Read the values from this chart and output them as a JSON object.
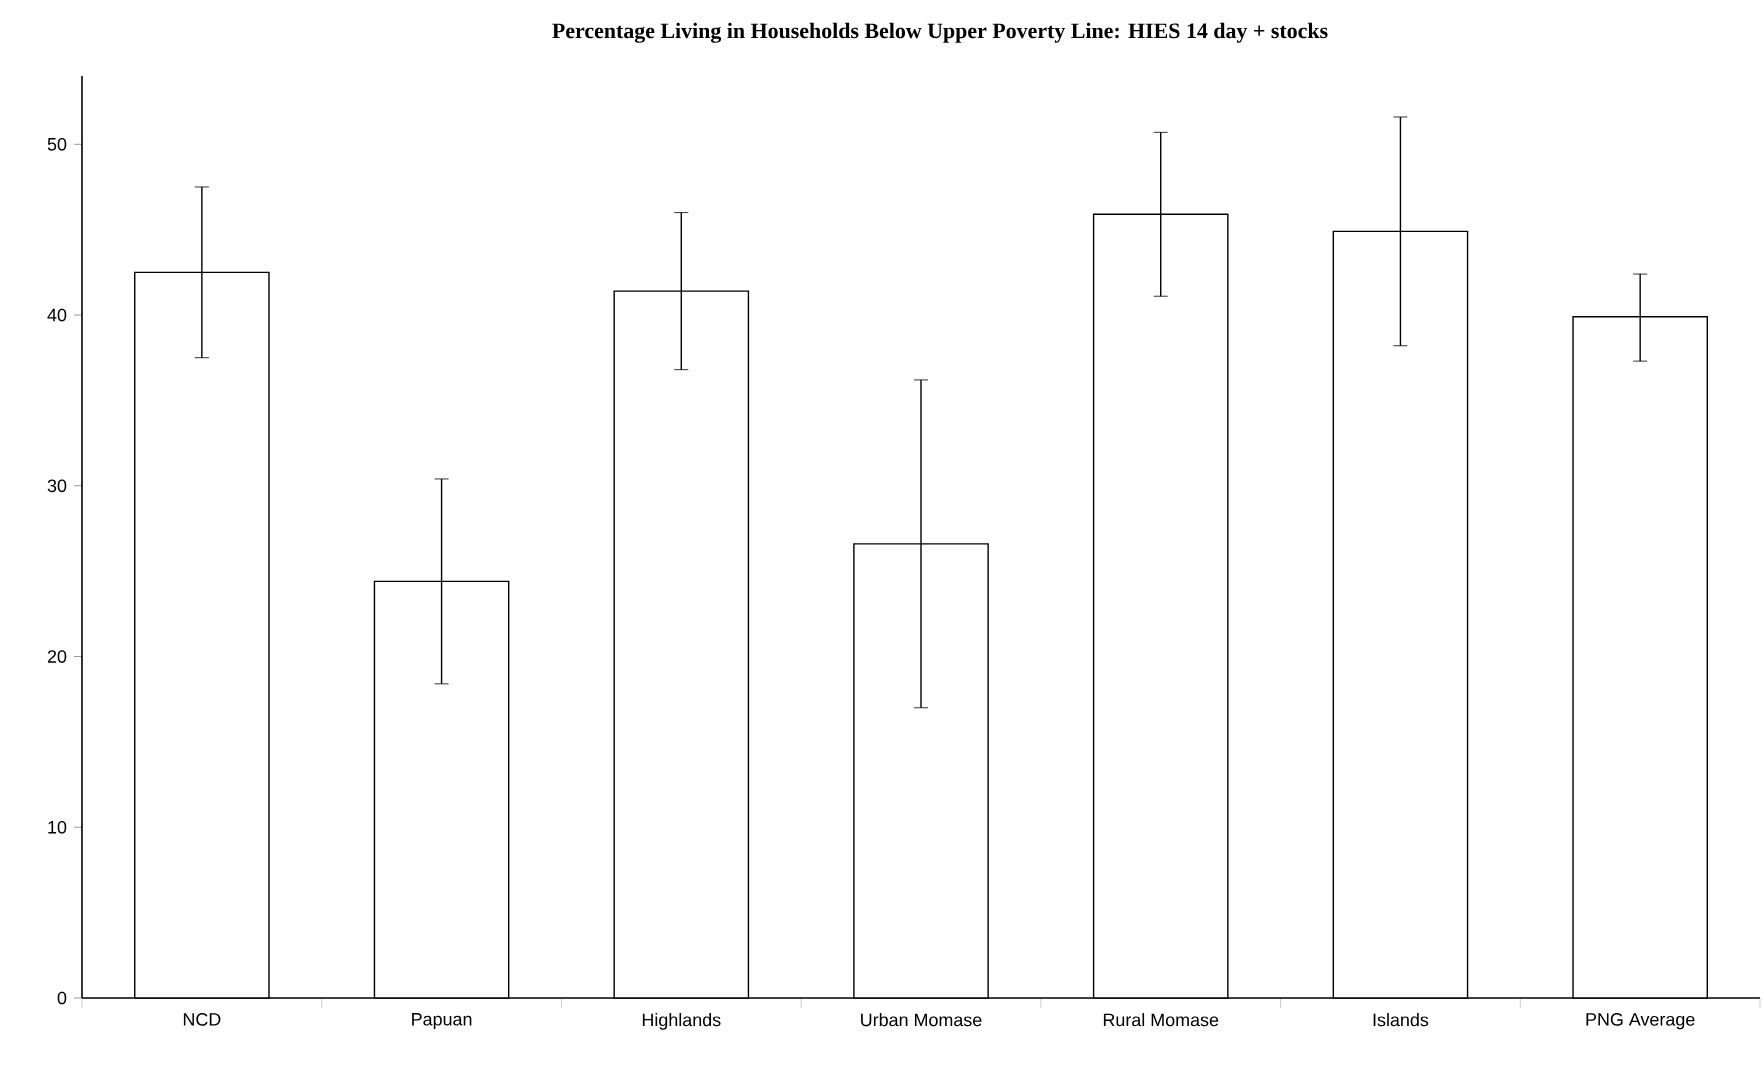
{
  "chart_data": {
    "type": "bar",
    "title": "Percentage Living in Households Below Upper Poverty Line: HIES 14 day + stocks",
    "categories": [
      "NCD",
      "Papuan",
      "Highlands",
      "Urban Momase",
      "Rural Momase",
      "Islands",
      "PNG Average"
    ],
    "values": [
      42.5,
      24.4,
      41.4,
      26.6,
      45.9,
      44.9,
      39.9
    ],
    "errors": [
      5.0,
      6.0,
      4.6,
      9.6,
      4.8,
      6.7,
      [
        37.3,
        42.4
      ]
    ],
    "color": "#ffffff",
    "ylim": [
      0,
      54
    ],
    "yticks": [
      0,
      10,
      20,
      30,
      40,
      50
    ],
    "grid": false
  }
}
